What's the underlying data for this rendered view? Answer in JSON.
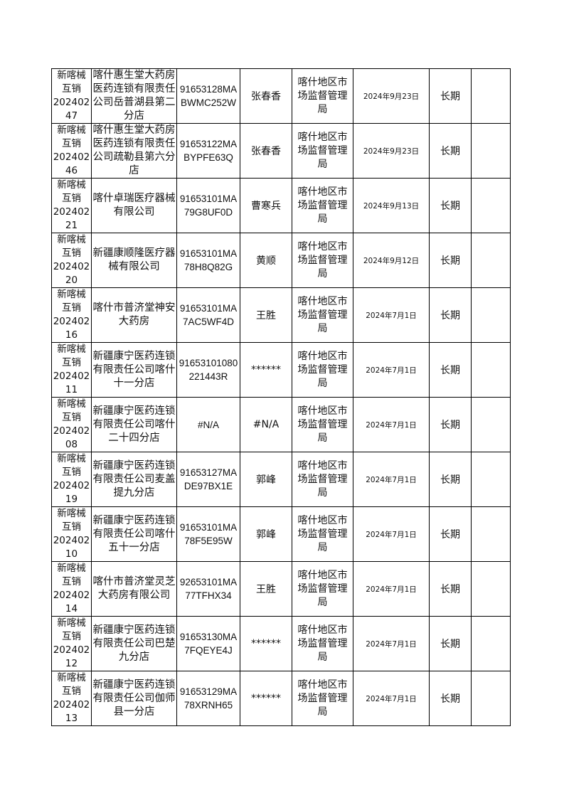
{
  "rows": [
    {
      "id": "新喀械\n互销\n202402\n47",
      "company": "喀什惠生堂大药房医药连锁有限责任公司岳普湖县第二分店",
      "credit_code": "91653128MABWMC252W",
      "person": "张春香",
      "authority": "喀什地区市场监督管理局",
      "date": "2024年9月23日",
      "validity": "长期",
      "note": ""
    },
    {
      "id": "新喀械\n互销\n202402\n46",
      "company": "喀什惠生堂大药房医药连锁有限责任公司疏勒县第六分店",
      "credit_code": "91653122MABYPFE63Q",
      "person": "张春香",
      "authority": "喀什地区市场监督管理局",
      "date": "2024年9月23日",
      "validity": "长期",
      "note": ""
    },
    {
      "id": "新喀械\n互销\n202402\n21",
      "company": "喀什卓瑞医疗器械有限公司",
      "credit_code": "91653101MA79G8UF0D",
      "person": "曹寒兵",
      "authority": "喀什地区市场监督管理局",
      "date": "2024年9月13日",
      "validity": "长期",
      "note": ""
    },
    {
      "id": "新喀械\n互销\n202402\n20",
      "company": "新疆康顺隆医疗器械有限公司",
      "credit_code": "91653101MA78H8Q82G",
      "person": "黄顺",
      "authority": "喀什地区市场监督管理局",
      "date": "2024年9月12日",
      "validity": "长期",
      "note": ""
    },
    {
      "id": "新喀械\n互销\n202402\n16",
      "company": "喀什市普济堂神安大药房",
      "credit_code": "91653101MA7AC5WF4D",
      "person": "王胜",
      "authority": "喀什地区市场监督管理局",
      "date": "2024年7月1日",
      "validity": "长期",
      "note": ""
    },
    {
      "id": "新喀械\n互销\n202402\n11",
      "company": "新疆康宁医药连锁有限责任公司喀什十一分店",
      "credit_code": "91653101080221443R",
      "person": "******",
      "authority": "喀什地区市场监督管理局",
      "date": "2024年7月1日",
      "validity": "长期",
      "note": ""
    },
    {
      "id": "新喀械\n互销\n202402\n08",
      "company": "新疆康宁医药连锁有限责任公司喀什二十四分店",
      "credit_code": "#N/A",
      "person": "#N/A",
      "authority": "喀什地区市场监督管理局",
      "date": "2024年7月1日",
      "validity": "长期",
      "note": ""
    },
    {
      "id": "新喀械\n互销\n202402\n19",
      "company": "新疆康宁医药连锁有限责任公司麦盖提九分店",
      "credit_code": "91653127MADE97BX1E",
      "person": "郭峰",
      "authority": "喀什地区市场监督管理局",
      "date": "2024年7月1日",
      "validity": "长期",
      "note": ""
    },
    {
      "id": "新喀械\n互销\n202402\n10",
      "company": "新疆康宁医药连锁有限责任公司喀什五十一分店",
      "credit_code": "91653101MA78F5E95W",
      "person": "郭峰",
      "authority": "喀什地区市场监督管理局",
      "date": "2024年7月1日",
      "validity": "长期",
      "note": ""
    },
    {
      "id": "新喀械\n互销\n202402\n14",
      "company": "喀什市普济堂灵芝大药房有限公司",
      "credit_code": "92653101MA77TFHX34",
      "person": "王胜",
      "authority": "喀什地区市场监督管理局",
      "date": "2024年7月1日",
      "validity": "长期",
      "note": ""
    },
    {
      "id": "新喀械\n互销\n202402\n12",
      "company": "新疆康宁医药连锁有限责任公司巴楚九分店",
      "credit_code": "91653130MA7FQEYE4J",
      "person": "******",
      "authority": "喀什地区市场监督管理局",
      "date": "2024年7月1日",
      "validity": "长期",
      "note": ""
    },
    {
      "id": "新喀械\n互销\n202402\n13",
      "company": "新疆康宁医药连锁有限责任公司伽师县一分店",
      "credit_code": "91653129MA78XRNH65",
      "person": "******",
      "authority": "喀什地区市场监督管理局",
      "date": "2024年7月1日",
      "validity": "长期",
      "note": ""
    }
  ]
}
